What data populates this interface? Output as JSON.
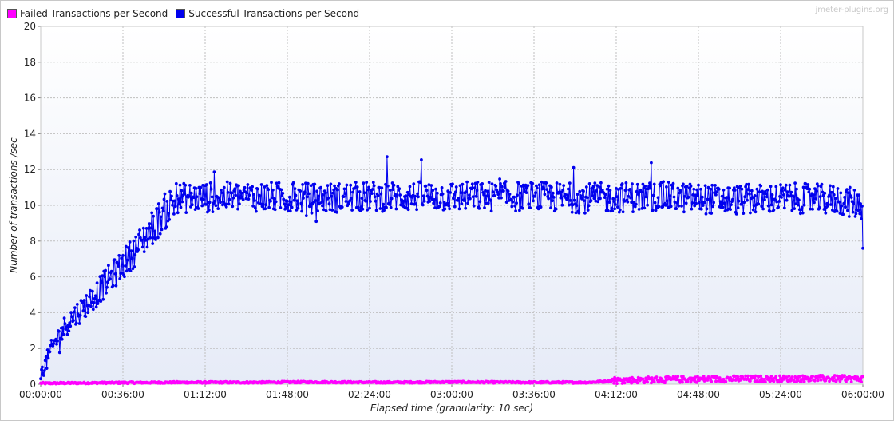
{
  "watermark": "jmeter-plugins.org",
  "chart_data": {
    "type": "line",
    "title": "",
    "xlabel": "Elapsed time (granularity: 10 sec)",
    "ylabel": "Number of transactions /sec",
    "x_unit": "seconds",
    "xlim": [
      0,
      21600
    ],
    "ylim": [
      0,
      20
    ],
    "x_ticks": [
      0,
      2160,
      4320,
      6480,
      8640,
      10800,
      12960,
      15120,
      17280,
      19440,
      21600
    ],
    "x_tick_labels": [
      "00:00:00",
      "00:36:00",
      "01:12:00",
      "01:48:00",
      "02:24:00",
      "03:00:00",
      "03:36:00",
      "04:12:00",
      "04:48:00",
      "05:24:00",
      "06:00:00"
    ],
    "y_ticks": [
      0,
      2,
      4,
      6,
      8,
      10,
      12,
      14,
      16,
      18,
      20
    ],
    "y_tick_labels": [
      "0",
      "2",
      "4",
      "6",
      "8",
      "10",
      "12",
      "14",
      "16",
      "18",
      "20"
    ],
    "grid": true,
    "legend_position": "top-left",
    "granularity_seconds": 10,
    "series": [
      {
        "name": "Failed Transactions per Second",
        "color": "#ff00ff",
        "x": [
          0,
          1800,
          3600,
          5400,
          7200,
          9000,
          10800,
          12600,
          14400,
          15300,
          16200,
          17280,
          18000,
          19440,
          20520,
          21600
        ],
        "y": [
          0.05,
          0.08,
          0.1,
          0.1,
          0.12,
          0.1,
          0.12,
          0.1,
          0.1,
          0.22,
          0.25,
          0.28,
          0.3,
          0.3,
          0.32,
          0.3
        ]
      },
      {
        "name": "Successful Transactions per Second",
        "color": "#0000ee",
        "x": [
          0,
          360,
          720,
          1080,
          1440,
          1800,
          2160,
          2520,
          2880,
          3240,
          3600,
          5400,
          7200,
          9000,
          10800,
          12600,
          14400,
          16200,
          18000,
          19800,
          21000,
          21580,
          21600
        ],
        "y": [
          0.5,
          2.3,
          3.5,
          4.2,
          5.0,
          5.9,
          6.7,
          7.6,
          8.6,
          9.6,
          10.4,
          10.5,
          10.4,
          10.5,
          10.5,
          10.5,
          10.4,
          10.5,
          10.3,
          10.4,
          10.3,
          10.0,
          7.6
        ]
      }
    ]
  }
}
